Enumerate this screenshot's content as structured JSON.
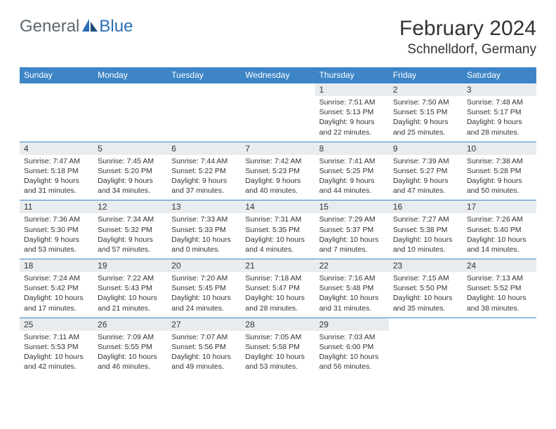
{
  "brand": {
    "word1": "General",
    "word2": "Blue"
  },
  "title": "February 2024",
  "location": "Schnelldorf, Germany",
  "colors": {
    "header_bg": "#3d85c6",
    "header_fg": "#ffffff",
    "row_border": "#3d85c6",
    "daynum_bg": "#e9ecef",
    "text": "#333333",
    "logo_gray": "#5a6770",
    "logo_blue": "#2a6db5",
    "page_bg": "#ffffff"
  },
  "layout": {
    "columns": 7,
    "rows": 5,
    "fontsize_header": 12,
    "fontsize_daynum": 12,
    "fontsize_body": 10.5
  },
  "weekdays": [
    "Sunday",
    "Monday",
    "Tuesday",
    "Wednesday",
    "Thursday",
    "Friday",
    "Saturday"
  ],
  "weeks": [
    [
      {
        "empty": true
      },
      {
        "empty": true
      },
      {
        "empty": true
      },
      {
        "empty": true
      },
      {
        "num": "1",
        "sunrise": "Sunrise: 7:51 AM",
        "sunset": "Sunset: 5:13 PM",
        "daylight1": "Daylight: 9 hours",
        "daylight2": "and 22 minutes."
      },
      {
        "num": "2",
        "sunrise": "Sunrise: 7:50 AM",
        "sunset": "Sunset: 5:15 PM",
        "daylight1": "Daylight: 9 hours",
        "daylight2": "and 25 minutes."
      },
      {
        "num": "3",
        "sunrise": "Sunrise: 7:48 AM",
        "sunset": "Sunset: 5:17 PM",
        "daylight1": "Daylight: 9 hours",
        "daylight2": "and 28 minutes."
      }
    ],
    [
      {
        "num": "4",
        "sunrise": "Sunrise: 7:47 AM",
        "sunset": "Sunset: 5:18 PM",
        "daylight1": "Daylight: 9 hours",
        "daylight2": "and 31 minutes."
      },
      {
        "num": "5",
        "sunrise": "Sunrise: 7:45 AM",
        "sunset": "Sunset: 5:20 PM",
        "daylight1": "Daylight: 9 hours",
        "daylight2": "and 34 minutes."
      },
      {
        "num": "6",
        "sunrise": "Sunrise: 7:44 AM",
        "sunset": "Sunset: 5:22 PM",
        "daylight1": "Daylight: 9 hours",
        "daylight2": "and 37 minutes."
      },
      {
        "num": "7",
        "sunrise": "Sunrise: 7:42 AM",
        "sunset": "Sunset: 5:23 PM",
        "daylight1": "Daylight: 9 hours",
        "daylight2": "and 40 minutes."
      },
      {
        "num": "8",
        "sunrise": "Sunrise: 7:41 AM",
        "sunset": "Sunset: 5:25 PM",
        "daylight1": "Daylight: 9 hours",
        "daylight2": "and 44 minutes."
      },
      {
        "num": "9",
        "sunrise": "Sunrise: 7:39 AM",
        "sunset": "Sunset: 5:27 PM",
        "daylight1": "Daylight: 9 hours",
        "daylight2": "and 47 minutes."
      },
      {
        "num": "10",
        "sunrise": "Sunrise: 7:38 AM",
        "sunset": "Sunset: 5:28 PM",
        "daylight1": "Daylight: 9 hours",
        "daylight2": "and 50 minutes."
      }
    ],
    [
      {
        "num": "11",
        "sunrise": "Sunrise: 7:36 AM",
        "sunset": "Sunset: 5:30 PM",
        "daylight1": "Daylight: 9 hours",
        "daylight2": "and 53 minutes."
      },
      {
        "num": "12",
        "sunrise": "Sunrise: 7:34 AM",
        "sunset": "Sunset: 5:32 PM",
        "daylight1": "Daylight: 9 hours",
        "daylight2": "and 57 minutes."
      },
      {
        "num": "13",
        "sunrise": "Sunrise: 7:33 AM",
        "sunset": "Sunset: 5:33 PM",
        "daylight1": "Daylight: 10 hours",
        "daylight2": "and 0 minutes."
      },
      {
        "num": "14",
        "sunrise": "Sunrise: 7:31 AM",
        "sunset": "Sunset: 5:35 PM",
        "daylight1": "Daylight: 10 hours",
        "daylight2": "and 4 minutes."
      },
      {
        "num": "15",
        "sunrise": "Sunrise: 7:29 AM",
        "sunset": "Sunset: 5:37 PM",
        "daylight1": "Daylight: 10 hours",
        "daylight2": "and 7 minutes."
      },
      {
        "num": "16",
        "sunrise": "Sunrise: 7:27 AM",
        "sunset": "Sunset: 5:38 PM",
        "daylight1": "Daylight: 10 hours",
        "daylight2": "and 10 minutes."
      },
      {
        "num": "17",
        "sunrise": "Sunrise: 7:26 AM",
        "sunset": "Sunset: 5:40 PM",
        "daylight1": "Daylight: 10 hours",
        "daylight2": "and 14 minutes."
      }
    ],
    [
      {
        "num": "18",
        "sunrise": "Sunrise: 7:24 AM",
        "sunset": "Sunset: 5:42 PM",
        "daylight1": "Daylight: 10 hours",
        "daylight2": "and 17 minutes."
      },
      {
        "num": "19",
        "sunrise": "Sunrise: 7:22 AM",
        "sunset": "Sunset: 5:43 PM",
        "daylight1": "Daylight: 10 hours",
        "daylight2": "and 21 minutes."
      },
      {
        "num": "20",
        "sunrise": "Sunrise: 7:20 AM",
        "sunset": "Sunset: 5:45 PM",
        "daylight1": "Daylight: 10 hours",
        "daylight2": "and 24 minutes."
      },
      {
        "num": "21",
        "sunrise": "Sunrise: 7:18 AM",
        "sunset": "Sunset: 5:47 PM",
        "daylight1": "Daylight: 10 hours",
        "daylight2": "and 28 minutes."
      },
      {
        "num": "22",
        "sunrise": "Sunrise: 7:16 AM",
        "sunset": "Sunset: 5:48 PM",
        "daylight1": "Daylight: 10 hours",
        "daylight2": "and 31 minutes."
      },
      {
        "num": "23",
        "sunrise": "Sunrise: 7:15 AM",
        "sunset": "Sunset: 5:50 PM",
        "daylight1": "Daylight: 10 hours",
        "daylight2": "and 35 minutes."
      },
      {
        "num": "24",
        "sunrise": "Sunrise: 7:13 AM",
        "sunset": "Sunset: 5:52 PM",
        "daylight1": "Daylight: 10 hours",
        "daylight2": "and 38 minutes."
      }
    ],
    [
      {
        "num": "25",
        "sunrise": "Sunrise: 7:11 AM",
        "sunset": "Sunset: 5:53 PM",
        "daylight1": "Daylight: 10 hours",
        "daylight2": "and 42 minutes."
      },
      {
        "num": "26",
        "sunrise": "Sunrise: 7:09 AM",
        "sunset": "Sunset: 5:55 PM",
        "daylight1": "Daylight: 10 hours",
        "daylight2": "and 46 minutes."
      },
      {
        "num": "27",
        "sunrise": "Sunrise: 7:07 AM",
        "sunset": "Sunset: 5:56 PM",
        "daylight1": "Daylight: 10 hours",
        "daylight2": "and 49 minutes."
      },
      {
        "num": "28",
        "sunrise": "Sunrise: 7:05 AM",
        "sunset": "Sunset: 5:58 PM",
        "daylight1": "Daylight: 10 hours",
        "daylight2": "and 53 minutes."
      },
      {
        "num": "29",
        "sunrise": "Sunrise: 7:03 AM",
        "sunset": "Sunset: 6:00 PM",
        "daylight1": "Daylight: 10 hours",
        "daylight2": "and 56 minutes."
      },
      {
        "empty": true
      },
      {
        "empty": true
      }
    ]
  ]
}
